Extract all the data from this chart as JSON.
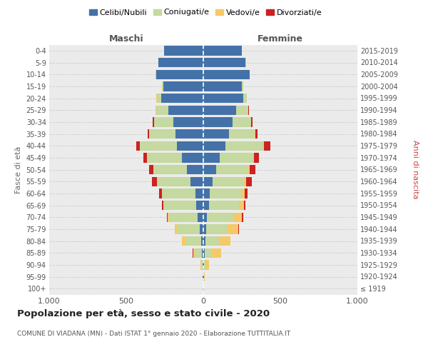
{
  "age_groups": [
    "100+",
    "95-99",
    "90-94",
    "85-89",
    "80-84",
    "75-79",
    "70-74",
    "65-69",
    "60-64",
    "55-59",
    "50-54",
    "45-49",
    "40-44",
    "35-39",
    "30-34",
    "25-29",
    "20-24",
    "15-19",
    "10-14",
    "5-9",
    "0-4"
  ],
  "birth_years": [
    "≤ 1919",
    "1920-1924",
    "1925-1929",
    "1930-1934",
    "1935-1939",
    "1940-1944",
    "1945-1949",
    "1950-1954",
    "1955-1959",
    "1960-1964",
    "1965-1969",
    "1970-1974",
    "1975-1979",
    "1980-1984",
    "1985-1989",
    "1990-1994",
    "1995-1999",
    "2000-2004",
    "2005-2009",
    "2010-2014",
    "2015-2019"
  ],
  "male_celibi": [
    2,
    3,
    4,
    7,
    15,
    25,
    35,
    48,
    52,
    85,
    105,
    140,
    170,
    180,
    195,
    225,
    275,
    260,
    305,
    290,
    255
  ],
  "male_coniugati": [
    1,
    2,
    10,
    50,
    100,
    145,
    185,
    205,
    215,
    215,
    215,
    225,
    240,
    170,
    125,
    82,
    28,
    8,
    4,
    2,
    1
  ],
  "male_vedovi": [
    0,
    1,
    3,
    10,
    22,
    13,
    10,
    4,
    2,
    2,
    2,
    2,
    2,
    1,
    0,
    1,
    1,
    0,
    0,
    0,
    0
  ],
  "male_divorziati": [
    0,
    0,
    1,
    2,
    2,
    4,
    8,
    12,
    18,
    32,
    28,
    22,
    22,
    12,
    8,
    3,
    1,
    0,
    0,
    0,
    0
  ],
  "fem_nubili": [
    2,
    3,
    6,
    9,
    12,
    18,
    25,
    35,
    42,
    60,
    85,
    105,
    145,
    165,
    190,
    215,
    260,
    250,
    300,
    275,
    248
  ],
  "fem_coniugate": [
    1,
    2,
    12,
    48,
    88,
    140,
    175,
    195,
    208,
    205,
    208,
    220,
    248,
    170,
    120,
    78,
    23,
    7,
    2,
    1,
    1
  ],
  "fem_vedove": [
    0,
    3,
    18,
    58,
    75,
    70,
    52,
    33,
    18,
    11,
    7,
    4,
    2,
    1,
    0,
    0,
    0,
    0,
    0,
    0,
    0
  ],
  "fem_divorziate": [
    0,
    0,
    1,
    2,
    2,
    4,
    8,
    12,
    18,
    38,
    38,
    32,
    38,
    18,
    8,
    4,
    1,
    0,
    0,
    0,
    0
  ],
  "colors": {
    "celibi": "#4472a8",
    "coniugati": "#c5d9a0",
    "vedovi": "#f5c96a",
    "divorziati": "#cc2222"
  },
  "title": "Popolazione per età, sesso e stato civile - 2020",
  "subtitle": "COMUNE DI VIADANA (MN) - Dati ISTAT 1° gennaio 2020 - Elaborazione TUTTITALIA.IT",
  "label_maschi": "Maschi",
  "label_femmine": "Femmine",
  "ylabel_left": "Fasce di età",
  "ylabel_right": "Anni di nascita",
  "legend_labels": [
    "Celibi/Nubili",
    "Coniugati/e",
    "Vedovi/e",
    "Divorziati/e"
  ],
  "xlim": 1000,
  "xticks": [
    -1000,
    -500,
    0,
    500,
    1000
  ],
  "xticklabels": [
    "1.000",
    "500",
    "0",
    "500",
    "1.000"
  ]
}
